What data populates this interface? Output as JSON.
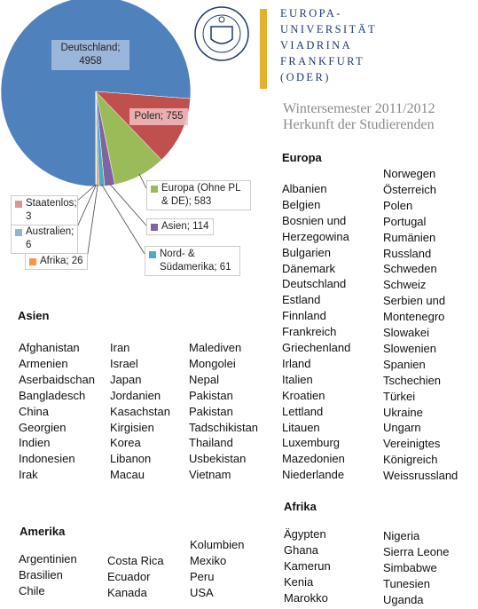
{
  "chart_data": {
    "type": "pie",
    "values": [
      4958,
      755,
      583,
      114,
      61,
      26,
      6,
      3
    ],
    "value_labels": [
      "Deutschland; 4958",
      "Polen; 755",
      "Europa (Ohne PL & DE); 583",
      "Asien; 114",
      "Nord- & Südamerika; 61",
      "Afrika; 26",
      "Australien; 6",
      "Staatenlos; 3"
    ],
    "colors": [
      "#4f81bd",
      "#c0504d",
      "#9bbb59",
      "#8064a2",
      "#4bacc6",
      "#f79646",
      "#95b3d7",
      "#d99694"
    ]
  },
  "header": {
    "logo_lines": [
      "EUROPA-",
      "UNIVERSITÄT",
      "VIADRINA",
      "FRANKFURT",
      "(ODER)"
    ],
    "title": "Wintersemester 2011/2012",
    "subtitle": "Herkunft der Studierenden"
  },
  "sections": {
    "europa": {
      "heading": "Europa",
      "columns": [
        [
          "Albanien",
          "Belgien",
          "Bosnien und",
          "Herzegowina",
          "Bulgarien",
          "Dänemark",
          "Deutschland",
          "Estland",
          "Finnland",
          "Frankreich",
          "Griechenland",
          "Irland",
          "Italien",
          "Kroatien",
          "Lettland",
          "Litauen",
          "Luxemburg",
          "Mazedonien",
          "Niederlande"
        ],
        [
          "Norwegen",
          "Österreich",
          "Polen",
          "Portugal",
          "Rumänien",
          "Russland",
          "Schweden",
          "Schweiz",
          "Serbien und",
          "Montenegro",
          "Slowakei",
          "Slowenien",
          "Spanien",
          "Tschechien",
          "Türkei",
          "Ukraine",
          "Ungarn",
          "Vereinigtes",
          "Königreich",
          "Weissrussland"
        ]
      ]
    },
    "asien": {
      "heading": "Asien",
      "columns": [
        [
          "Afghanistan",
          "Armenien",
          "Aserbaidschan",
          "Bangladesch",
          "China",
          "Georgien",
          "Indien",
          "Indonesien",
          "Irak"
        ],
        [
          "Iran",
          "Israel",
          "Japan",
          "Jordanien",
          "Kasachstan",
          "Kirgisien",
          "Korea",
          "Libanon",
          "Macau"
        ],
        [
          "Malediven",
          "Mongolei",
          "Nepal",
          "Pakistan",
          "Pakistan",
          "Tadschikistan",
          "Thailand",
          "Usbekistan",
          "Vietnam"
        ]
      ]
    },
    "amerika": {
      "heading": "Amerika",
      "columns": [
        [
          "Argentinien",
          "Brasilien",
          "Chile"
        ],
        [
          "Costa Rica",
          "Ecuador",
          "Kanada"
        ],
        [
          "Kolumbien",
          "Mexiko",
          "Peru",
          "USA"
        ]
      ]
    },
    "afrika": {
      "heading": "Afrika",
      "columns": [
        [
          "Ägypten",
          "Ghana",
          "Kamerun",
          "Kenia",
          "Marokko"
        ],
        [
          "Nigeria",
          "Sierra Leone",
          "Simbabwe",
          "Tunesien",
          "Uganda"
        ]
      ]
    }
  }
}
